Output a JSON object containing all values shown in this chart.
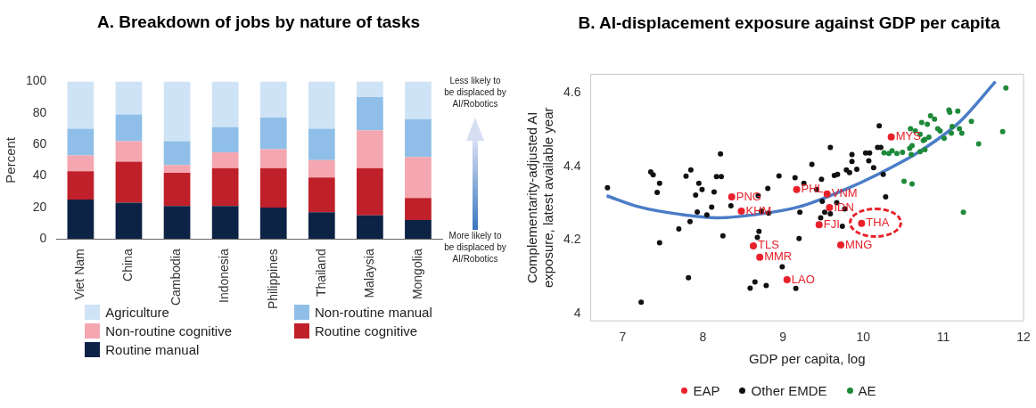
{
  "chart_data": [
    {
      "type": "bar",
      "title": "A. Breakdown of jobs by nature of tasks",
      "ylabel": "Percent",
      "stacked": true,
      "legend": "bottom",
      "categories": [
        "Viet Nam",
        "China",
        "Cambodia",
        "Indonesia",
        "Philippines",
        "Thailand",
        "Malaysia",
        "Mongolia"
      ],
      "ylim": [
        0,
        100
      ],
      "yticks": [
        0,
        20,
        40,
        60,
        80,
        100
      ],
      "annotations": [
        "Less likely to be displaced by AI/Robotics",
        "More likely to be displaced by AI/Robotics"
      ],
      "series": [
        {
          "name": "Routine manual",
          "color": "#0d2345",
          "values": [
            25,
            23,
            21,
            21,
            20,
            17,
            15,
            12
          ]
        },
        {
          "name": "Routine cognitive",
          "color": "#c0202a",
          "values": [
            18,
            26,
            21,
            24,
            25,
            22,
            30,
            14
          ]
        },
        {
          "name": "Non-routine cognitive",
          "color": "#f4a7b0",
          "values": [
            10,
            13,
            5,
            10,
            12,
            11,
            24,
            26
          ]
        },
        {
          "name": "Non-routine manual",
          "color": "#8fbfe8",
          "values": [
            17,
            17,
            15,
            16,
            20,
            20,
            21,
            24
          ]
        },
        {
          "name": "Agriculture",
          "color": "#cfe3f6",
          "values": [
            30,
            21,
            38,
            29,
            23,
            30,
            10,
            24
          ]
        }
      ]
    },
    {
      "type": "scatter",
      "title": "B. AI-displacement exposure against GDP per capita",
      "xlabel": "GDP per capita, log",
      "ylabel": "Complementarity-adjusted AI exposure, latest available year",
      "legend": "bottom",
      "marker": "circle",
      "xlim": [
        6.6,
        12
      ],
      "xticks": [
        7,
        8,
        9,
        10,
        11,
        12
      ],
      "ylim": [
        3.98,
        4.65
      ],
      "yticks": [
        4,
        4.2,
        4.4,
        4.6
      ],
      "annotations": [
        {
          "text": "PNG",
          "x": 8.36,
          "y": 4.317
        },
        {
          "text": "PHL",
          "x": 9.17,
          "y": 4.337
        },
        {
          "text": "VNM",
          "x": 9.55,
          "y": 4.325
        },
        {
          "text": "IDN",
          "x": 9.58,
          "y": 4.288
        },
        {
          "text": "KHM",
          "x": 8.48,
          "y": 4.278
        },
        {
          "text": "FJI",
          "x": 9.45,
          "y": 4.241
        },
        {
          "text": "THA",
          "x": 9.98,
          "y": 4.245
        },
        {
          "text": "TLS",
          "x": 8.63,
          "y": 4.184
        },
        {
          "text": "MNG",
          "x": 9.72,
          "y": 4.186
        },
        {
          "text": "MMR",
          "x": 8.71,
          "y": 4.153
        },
        {
          "text": "LAO",
          "x": 9.05,
          "y": 4.092
        },
        {
          "text": "MYS",
          "x": 10.35,
          "y": 4.48
        }
      ],
      "series": [
        {
          "name": "EAP",
          "color": "#e8202a",
          "x": [
            8.36,
            9.17,
            9.55,
            9.58,
            8.48,
            9.45,
            9.98,
            8.63,
            9.72,
            8.71,
            9.05,
            10.35
          ],
          "values": [
            4.317,
            4.337,
            4.325,
            4.288,
            4.278,
            4.241,
            4.245,
            4.184,
            4.186,
            4.153,
            4.092,
            4.48
          ]
        },
        {
          "name": "Other EMDE",
          "color": "#111111",
          "x": [
            6.81,
            7.46,
            7.43,
            7.95,
            7.99,
            7.91,
            8.14,
            8.69,
            8.81,
            8.35,
            7.93,
            8.05,
            8.11,
            7.84,
            7.7,
            7.46,
            8.25,
            8.7,
            8.68,
            8.73,
            8.82,
            9.21,
            9.2,
            9.42,
            9.49,
            9.52,
            9.47,
            9.59,
            9.67,
            9.77,
            9.74,
            10.28,
            7.82,
            8.65,
            8.59,
            8.79,
            8.99,
            9.16,
            7.23,
            7.35,
            7.38,
            7.79,
            7.85,
            8.17,
            8.23,
            8.22,
            8.95,
            9.15,
            9.26,
            9.36,
            9.48,
            9.59,
            9.64,
            9.68,
            9.79,
            9.83,
            9.86,
            9.86,
            9.92,
            10.03,
            10.08,
            10.07,
            10.13,
            10.18,
            10.22,
            10.2,
            10.25
          ],
          "values": [
            4.342,
            4.354,
            4.329,
            4.354,
            4.337,
            4.322,
            4.33,
            4.32,
            4.34,
            4.293,
            4.276,
            4.268,
            4.289,
            4.25,
            4.23,
            4.192,
            4.211,
            4.223,
            4.207,
            4.278,
            4.273,
            4.275,
            4.204,
            4.337,
            4.305,
            4.275,
            4.26,
            4.271,
            4.301,
            4.284,
            4.237,
            4.317,
            4.097,
            4.086,
            4.069,
            4.076,
            4.127,
            4.068,
            4.031,
            4.385,
            4.377,
            4.373,
            4.39,
            4.372,
            4.372,
            4.434,
            4.374,
            4.369,
            4.354,
            4.405,
            4.365,
            4.451,
            4.375,
            4.378,
            4.39,
            4.383,
            4.413,
            4.432,
            4.392,
            4.436,
            4.436,
            4.415,
            4.396,
            4.451,
            4.451,
            4.51,
            4.378
          ]
        },
        {
          "name": "AE",
          "color": "#1e8a3a",
          "x": [
            10.26,
            10.32,
            10.36,
            10.42,
            10.49,
            10.58,
            10.61,
            10.6,
            10.71,
            10.77,
            10.59,
            10.65,
            10.71,
            10.73,
            10.8,
            10.84,
            10.89,
            10.77,
            10.82,
            10.75,
            10.93,
            10.96,
            11.01,
            11.07,
            11.08,
            11.18,
            11.11,
            11.1,
            11.2,
            11.23,
            11.35,
            11.44,
            11.74,
            11.78,
            10.51,
            10.61,
            11.25
          ],
          "values": [
            4.437,
            4.435,
            4.442,
            4.435,
            4.438,
            4.449,
            4.456,
            4.432,
            4.44,
            4.445,
            4.502,
            4.496,
            4.487,
            4.519,
            4.514,
            4.537,
            4.528,
            4.473,
            4.479,
            4.47,
            4.502,
            4.496,
            4.476,
            4.553,
            4.547,
            4.55,
            4.508,
            4.49,
            4.502,
            4.49,
            4.522,
            4.461,
            4.494,
            4.613,
            4.359,
            4.352,
            4.275
          ]
        },
        {
          "type": "line",
          "marker": "none",
          "color": "#4a7cc7",
          "x": [
            6.8,
            7.2,
            7.7,
            8.2,
            8.7,
            9.2,
            9.7,
            10.2,
            10.7,
            11.2,
            11.65
          ],
          "values": [
            4.32,
            4.29,
            4.27,
            4.26,
            4.27,
            4.29,
            4.33,
            4.38,
            4.44,
            4.52,
            4.63
          ]
        }
      ]
    }
  ]
}
